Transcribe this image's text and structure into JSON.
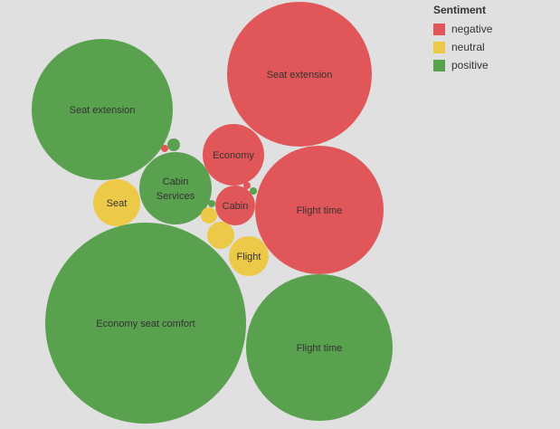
{
  "colors": {
    "negative": "#e15759",
    "neutral": "#edc948",
    "positive": "#59a14f",
    "background": "#e0e0e0"
  },
  "legend": {
    "title": "Sentiment",
    "items": [
      {
        "key": "negative",
        "label": "negative"
      },
      {
        "key": "neutral",
        "label": "neutral"
      },
      {
        "key": "positive",
        "label": "positive"
      }
    ]
  },
  "chart_data": {
    "type": "bubble",
    "title": "",
    "legend_position": "top-right",
    "bubbles": [
      {
        "label": "Seat extension",
        "sentiment": "negative",
        "size": 80
      },
      {
        "label": "Seat extension",
        "sentiment": "positive",
        "size": 78
      },
      {
        "label": "Economy",
        "sentiment": "negative",
        "size": 34
      },
      {
        "label": "Cabin Services",
        "sentiment": "positive",
        "size": 40
      },
      {
        "label": "Seat",
        "sentiment": "neutral",
        "size": 26
      },
      {
        "label": "Cabin",
        "sentiment": "negative",
        "size": 22
      },
      {
        "label": "Flight time",
        "sentiment": "negative",
        "size": 71
      },
      {
        "label": "Flight",
        "sentiment": "neutral",
        "size": 22
      },
      {
        "label": "Economy seat comfort",
        "sentiment": "positive",
        "size": 111
      },
      {
        "label": "Flight time",
        "sentiment": "positive",
        "size": 81
      },
      {
        "label": "",
        "sentiment": "positive",
        "size": 7
      },
      {
        "label": "",
        "sentiment": "negative",
        "size": 4
      },
      {
        "label": "",
        "sentiment": "neutral",
        "size": 9
      },
      {
        "label": "",
        "sentiment": "neutral",
        "size": 15
      },
      {
        "label": "",
        "sentiment": "positive",
        "size": 4
      },
      {
        "label": "",
        "sentiment": "negative",
        "size": 4
      },
      {
        "label": "",
        "sentiment": "positive",
        "size": 4
      }
    ]
  }
}
